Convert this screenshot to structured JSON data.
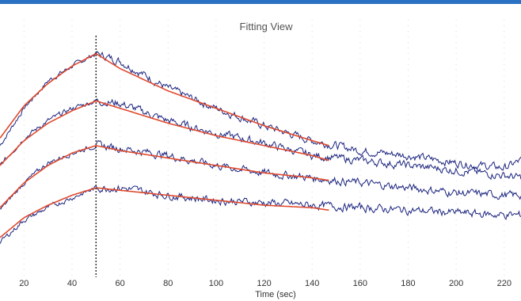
{
  "chart_data": {
    "type": "line",
    "title": "Fitting View",
    "xlabel": "Time (sec)",
    "ylabel": "",
    "xlim": [
      10,
      227
    ],
    "ylim": [
      0,
      110
    ],
    "x_ticks": [
      20,
      40,
      60,
      80,
      100,
      120,
      140,
      160,
      180,
      200,
      220
    ],
    "grid": false,
    "legend": "none",
    "injection_end_time": 50,
    "colors": {
      "measured": "#1a237e",
      "fit": "#e04a2e",
      "marker": "#333333",
      "grid": "#d9d9d9",
      "title_bar": "#2a72c4"
    },
    "series": [
      {
        "peak": 90,
        "measured": {
          "x": [
            10,
            20,
            30,
            40,
            50,
            60,
            80,
            100,
            120,
            140,
            160,
            180,
            200,
            220,
            227
          ],
          "y": [
            53,
            68,
            79,
            85,
            90,
            87,
            76,
            68,
            61,
            55,
            51,
            49,
            46,
            44,
            47
          ]
        },
        "fit": {
          "x": [
            10,
            20,
            30,
            40,
            50,
            60,
            80,
            100,
            120,
            140,
            147
          ],
          "y": [
            56,
            69,
            78,
            85,
            90,
            84,
            75,
            68,
            61,
            55,
            53
          ]
        }
      },
      {
        "peak": 71,
        "measured": {
          "x": [
            10,
            20,
            30,
            40,
            50,
            60,
            80,
            100,
            120,
            140,
            160,
            180,
            200,
            220,
            227
          ],
          "y": [
            45,
            56,
            63,
            68,
            71,
            70,
            63,
            58,
            54,
            49,
            47,
            45,
            43,
            41,
            40
          ]
        },
        "fit": {
          "x": [
            10,
            20,
            30,
            40,
            50,
            60,
            80,
            100,
            120,
            140,
            147
          ],
          "y": [
            45,
            55,
            62,
            67,
            71,
            68,
            62,
            57,
            53,
            49,
            47
          ]
        }
      },
      {
        "peak": 53,
        "measured": {
          "x": [
            10,
            20,
            30,
            40,
            50,
            60,
            80,
            100,
            120,
            140,
            160,
            180,
            200,
            220,
            227
          ],
          "y": [
            27,
            38,
            46,
            50,
            53,
            52,
            49,
            45,
            42,
            40,
            38,
            36,
            34,
            33,
            33
          ]
        },
        "fit": {
          "x": [
            10,
            20,
            30,
            40,
            50,
            60,
            80,
            100,
            120,
            140,
            147
          ],
          "y": [
            28,
            38,
            45,
            50,
            53,
            51,
            48,
            45,
            42,
            40,
            39
          ]
        }
      },
      {
        "peak": 36,
        "measured": {
          "x": [
            10,
            20,
            30,
            40,
            50,
            60,
            80,
            100,
            120,
            140,
            160,
            180,
            200,
            220,
            227
          ],
          "y": [
            14,
            23,
            28,
            32,
            36,
            36,
            33,
            31,
            30,
            29,
            28,
            27,
            26,
            25,
            25
          ]
        },
        "fit": {
          "x": [
            10,
            20,
            30,
            40,
            50,
            60,
            80,
            100,
            120,
            140,
            147
          ],
          "y": [
            16,
            24,
            29,
            33,
            36,
            35,
            33,
            31,
            29,
            28,
            27
          ]
        }
      }
    ]
  }
}
